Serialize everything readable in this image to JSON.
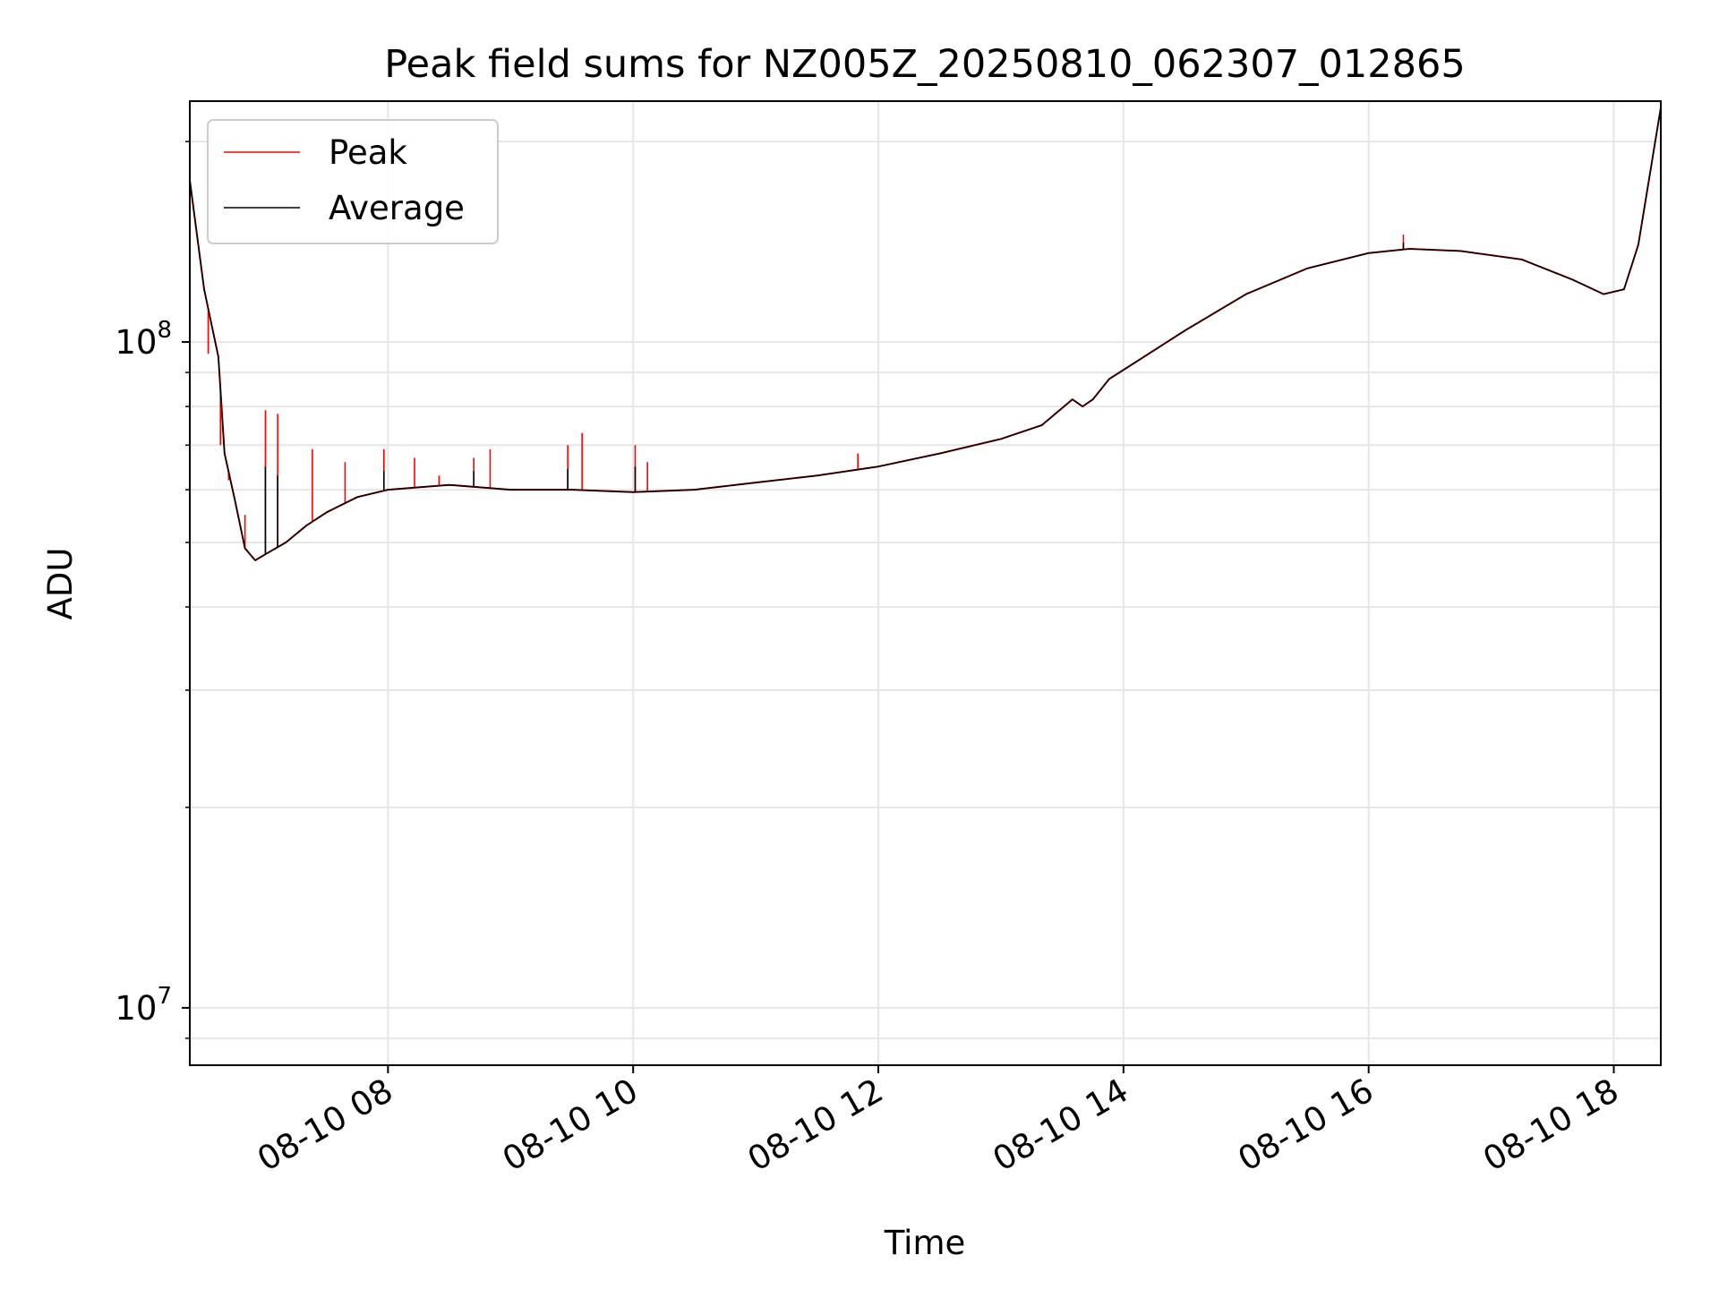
{
  "chart_data": {
    "type": "line",
    "title": "Peak field sums for NZ005Z_20250810_062307_012865",
    "xlabel": "Time",
    "ylabel": "ADU",
    "yscale": "log",
    "grid": true,
    "legend_position": "top-left",
    "xlim": [
      "2025-08-10 06:23",
      "2025-08-10 18:23"
    ],
    "ylim": [
      8200000,
      230000000
    ],
    "x_ticks": [
      {
        "x": "2025-08-10 08:00",
        "label": "08-10 08"
      },
      {
        "x": "2025-08-10 10:00",
        "label": "08-10 10"
      },
      {
        "x": "2025-08-10 12:00",
        "label": "08-10 12"
      },
      {
        "x": "2025-08-10 14:00",
        "label": "08-10 14"
      },
      {
        "x": "2025-08-10 16:00",
        "label": "08-10 16"
      },
      {
        "x": "2025-08-10 18:00",
        "label": "08-10 18"
      }
    ],
    "y_ticks": [
      {
        "value": 10000000,
        "base": "10",
        "exp": "7"
      },
      {
        "value": 100000000,
        "base": "10",
        "exp": "8"
      }
    ],
    "series": [
      {
        "name": "Peak",
        "color": "#ff0000",
        "points": [
          [
            "2025-08-10 06:23",
            175000000
          ],
          [
            "2025-08-10 06:30",
            120000000
          ],
          [
            "2025-08-10 06:37",
            95000000
          ],
          [
            "2025-08-10 06:40",
            68000000
          ],
          [
            "2025-08-10 06:45",
            58000000
          ],
          [
            "2025-08-10 06:50",
            49000000
          ],
          [
            "2025-08-10 06:55",
            47000000
          ],
          [
            "2025-08-10 07:00",
            48000000
          ],
          [
            "2025-08-10 07:10",
            50000000
          ],
          [
            "2025-08-10 07:20",
            53000000
          ],
          [
            "2025-08-10 07:30",
            55500000
          ],
          [
            "2025-08-10 07:45",
            58500000
          ],
          [
            "2025-08-10 08:00",
            60000000
          ],
          [
            "2025-08-10 08:30",
            61000000
          ],
          [
            "2025-08-10 09:00",
            60000000
          ],
          [
            "2025-08-10 09:30",
            60000000
          ],
          [
            "2025-08-10 10:00",
            59500000
          ],
          [
            "2025-08-10 10:30",
            60000000
          ],
          [
            "2025-08-10 11:00",
            61500000
          ],
          [
            "2025-08-10 11:30",
            63000000
          ],
          [
            "2025-08-10 12:00",
            65000000
          ],
          [
            "2025-08-10 12:30",
            68000000
          ],
          [
            "2025-08-10 13:00",
            71500000
          ],
          [
            "2025-08-10 13:20",
            75000000
          ],
          [
            "2025-08-10 13:35",
            82000000
          ],
          [
            "2025-08-10 13:40",
            80000000
          ],
          [
            "2025-08-10 13:45",
            82000000
          ],
          [
            "2025-08-10 13:53",
            88000000
          ],
          [
            "2025-08-10 14:10",
            95000000
          ],
          [
            "2025-08-10 14:30",
            104000000
          ],
          [
            "2025-08-10 15:00",
            118000000
          ],
          [
            "2025-08-10 15:30",
            129000000
          ],
          [
            "2025-08-10 16:00",
            136000000
          ],
          [
            "2025-08-10 16:20",
            138000000
          ],
          [
            "2025-08-10 16:45",
            137000000
          ],
          [
            "2025-08-10 17:15",
            133000000
          ],
          [
            "2025-08-10 17:40",
            124000000
          ],
          [
            "2025-08-10 17:55",
            118000000
          ],
          [
            "2025-08-10 18:05",
            120000000
          ],
          [
            "2025-08-10 18:12",
            140000000
          ],
          [
            "2025-08-10 18:23",
            225000000
          ]
        ],
        "spikes": [
          [
            "2025-08-10 06:32",
            96000000
          ],
          [
            "2025-08-10 06:38",
            70000000
          ],
          [
            "2025-08-10 06:42",
            62000000
          ],
          [
            "2025-08-10 06:50",
            55000000
          ],
          [
            "2025-08-10 07:00",
            79000000
          ],
          [
            "2025-08-10 07:06",
            78000000
          ],
          [
            "2025-08-10 07:23",
            69000000
          ],
          [
            "2025-08-10 07:39",
            66000000
          ],
          [
            "2025-08-10 07:58",
            69000000
          ],
          [
            "2025-08-10 08:13",
            67000000
          ],
          [
            "2025-08-10 08:25",
            63000000
          ],
          [
            "2025-08-10 08:42",
            67000000
          ],
          [
            "2025-08-10 08:50",
            69000000
          ],
          [
            "2025-08-10 09:28",
            70000000
          ],
          [
            "2025-08-10 09:35",
            73000000
          ],
          [
            "2025-08-10 10:01",
            70000000
          ],
          [
            "2025-08-10 10:07",
            66000000
          ],
          [
            "2025-08-10 11:50",
            68000000
          ],
          [
            "2025-08-10 16:17",
            145000000
          ]
        ]
      },
      {
        "name": "Average",
        "color": "#000000",
        "points": [
          [
            "2025-08-10 06:23",
            175000000
          ],
          [
            "2025-08-10 06:30",
            120000000
          ],
          [
            "2025-08-10 06:37",
            95000000
          ],
          [
            "2025-08-10 06:40",
            68000000
          ],
          [
            "2025-08-10 06:45",
            58000000
          ],
          [
            "2025-08-10 06:50",
            49000000
          ],
          [
            "2025-08-10 06:55",
            47000000
          ],
          [
            "2025-08-10 07:00",
            48000000
          ],
          [
            "2025-08-10 07:10",
            50000000
          ],
          [
            "2025-08-10 07:20",
            53000000
          ],
          [
            "2025-08-10 07:30",
            55500000
          ],
          [
            "2025-08-10 07:45",
            58500000
          ],
          [
            "2025-08-10 08:00",
            60000000
          ],
          [
            "2025-08-10 08:30",
            61000000
          ],
          [
            "2025-08-10 09:00",
            60000000
          ],
          [
            "2025-08-10 09:30",
            60000000
          ],
          [
            "2025-08-10 10:00",
            59500000
          ],
          [
            "2025-08-10 10:30",
            60000000
          ],
          [
            "2025-08-10 11:00",
            61500000
          ],
          [
            "2025-08-10 11:30",
            63000000
          ],
          [
            "2025-08-10 12:00",
            65000000
          ],
          [
            "2025-08-10 12:30",
            68000000
          ],
          [
            "2025-08-10 13:00",
            71500000
          ],
          [
            "2025-08-10 13:20",
            75000000
          ],
          [
            "2025-08-10 13:35",
            82000000
          ],
          [
            "2025-08-10 13:40",
            80000000
          ],
          [
            "2025-08-10 13:45",
            82000000
          ],
          [
            "2025-08-10 13:53",
            88000000
          ],
          [
            "2025-08-10 14:10",
            95000000
          ],
          [
            "2025-08-10 14:30",
            104000000
          ],
          [
            "2025-08-10 15:00",
            118000000
          ],
          [
            "2025-08-10 15:30",
            129000000
          ],
          [
            "2025-08-10 16:00",
            136000000
          ],
          [
            "2025-08-10 16:20",
            138000000
          ],
          [
            "2025-08-10 16:45",
            137000000
          ],
          [
            "2025-08-10 17:15",
            133000000
          ],
          [
            "2025-08-10 17:40",
            124000000
          ],
          [
            "2025-08-10 17:55",
            118000000
          ],
          [
            "2025-08-10 18:05",
            120000000
          ],
          [
            "2025-08-10 18:12",
            140000000
          ],
          [
            "2025-08-10 18:23",
            225000000
          ]
        ],
        "spikes": [
          [
            "2025-08-10 07:00",
            65000000
          ],
          [
            "2025-08-10 07:06",
            63000000
          ],
          [
            "2025-08-10 07:58",
            64000000
          ],
          [
            "2025-08-10 08:42",
            64000000
          ],
          [
            "2025-08-10 09:28",
            64500000
          ],
          [
            "2025-08-10 10:01",
            65000000
          ],
          [
            "2025-08-10 16:17",
            141000000
          ]
        ]
      }
    ]
  }
}
